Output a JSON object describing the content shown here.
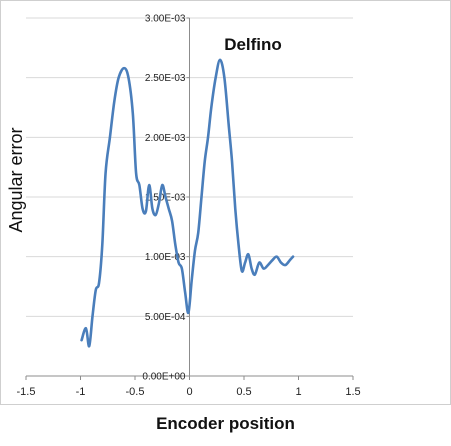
{
  "chart_data": {
    "type": "line",
    "title": "Delfino",
    "xlabel": "Encoder position",
    "ylabel": "Angular  error",
    "xlim": [
      -1.5,
      1.5
    ],
    "ylim": [
      0,
      0.003
    ],
    "xticks": [
      "-1.5",
      "-1",
      "-0.5",
      "0",
      "0.5",
      "1",
      "1.5"
    ],
    "yticks": [
      "0.00E+00",
      "5.00E-04",
      "1.00E-03",
      "1.50E-03",
      "2.00E-03",
      "2.50E-03",
      "3.00E-03"
    ],
    "grid": true,
    "line_color": "#4a7ebb",
    "series": [
      {
        "x": [
          -0.99,
          -0.95,
          -0.92,
          -0.89,
          -0.86,
          -0.83,
          -0.8,
          -0.77,
          -0.73,
          -0.69,
          -0.65,
          -0.6,
          -0.56,
          -0.52,
          -0.49,
          -0.46,
          -0.43,
          -0.4,
          -0.37,
          -0.34,
          -0.31,
          -0.28,
          -0.25,
          -0.22,
          -0.19,
          -0.16,
          -0.13,
          -0.1,
          -0.07,
          -0.04,
          -0.01,
          0.02,
          0.05,
          0.08,
          0.11,
          0.14,
          0.17,
          0.2,
          0.24,
          0.28,
          0.32,
          0.36,
          0.39,
          0.42,
          0.45,
          0.48,
          0.51,
          0.54,
          0.57,
          0.6,
          0.64,
          0.68,
          0.72,
          0.76,
          0.8,
          0.84,
          0.88,
          0.92,
          0.95
        ],
        "y": [
          0.0003,
          0.0004,
          0.00025,
          0.0005,
          0.00072,
          0.00078,
          0.0011,
          0.0017,
          0.002,
          0.0023,
          0.0025,
          0.00258,
          0.0025,
          0.0022,
          0.0017,
          0.0016,
          0.0014,
          0.00138,
          0.0016,
          0.0014,
          0.00135,
          0.00145,
          0.0016,
          0.0015,
          0.0014,
          0.0013,
          0.0011,
          0.00095,
          0.0009,
          0.0007,
          0.00053,
          0.0008,
          0.00105,
          0.0012,
          0.0015,
          0.0018,
          0.002,
          0.00225,
          0.0025,
          0.00265,
          0.0025,
          0.0021,
          0.0018,
          0.0014,
          0.0011,
          0.00088,
          0.00095,
          0.00102,
          0.0009,
          0.00085,
          0.00095,
          0.0009,
          0.00093,
          0.00097,
          0.001,
          0.00095,
          0.00093,
          0.00097,
          0.001
        ]
      }
    ]
  }
}
